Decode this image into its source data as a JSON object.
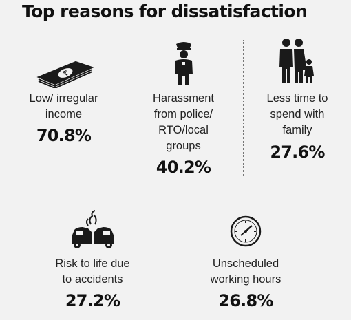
{
  "title": "Top reasons for dissatisfaction",
  "reasons": [
    {
      "icon": "money-icon",
      "label_lines": [
        "Low/ irregular",
        "income"
      ],
      "value": "70.8%"
    },
    {
      "icon": "police-officer-icon",
      "label_lines": [
        "Harassment",
        "from police/",
        "RTO/local",
        "groups"
      ],
      "value": "40.2%"
    },
    {
      "icon": "family-icon",
      "label_lines": [
        "Less time to",
        "spend with",
        "family"
      ],
      "value": "27.6%"
    },
    {
      "icon": "car-crash-icon",
      "label_lines": [
        "Risk to life due",
        "to accidents"
      ],
      "value": "27.2%"
    },
    {
      "icon": "clock-icon",
      "label_lines": [
        "Unscheduled",
        "working hours"
      ],
      "value": "26.8%"
    }
  ],
  "colors": {
    "background": "#f2f2f2",
    "text": "#111111",
    "icon": "#1a1a1a"
  }
}
